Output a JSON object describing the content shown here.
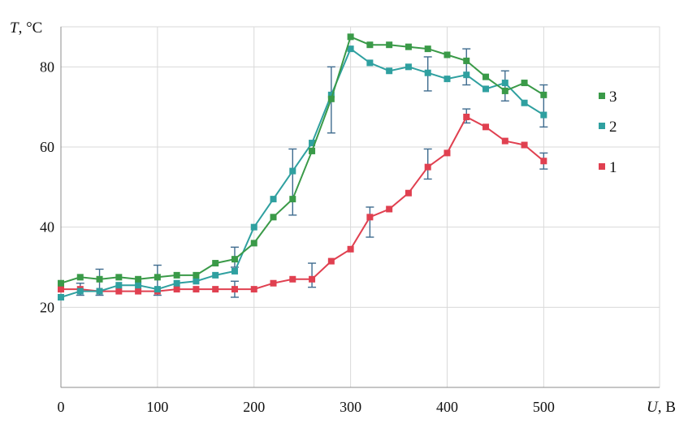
{
  "chart_data": {
    "type": "line",
    "title": "",
    "xlabel": {
      "symbol": "U",
      "unit": ", В"
    },
    "ylabel": {
      "symbol": "T",
      "unit": ", °C"
    },
    "xlim": [
      0,
      620
    ],
    "ylim": [
      0,
      90
    ],
    "x_ticks": [
      0,
      100,
      200,
      300,
      400,
      500
    ],
    "y_ticks": [
      20,
      40,
      60,
      80
    ],
    "grid": true,
    "legend_position": "right",
    "series": [
      {
        "name": "3",
        "color": "#3a9a48",
        "x": [
          0,
          20,
          40,
          60,
          80,
          100,
          120,
          140,
          160,
          180,
          200,
          220,
          240,
          260,
          280,
          300,
          320,
          340,
          360,
          380,
          400,
          420,
          440,
          460,
          480,
          500
        ],
        "y": [
          26.0,
          27.5,
          27.0,
          27.5,
          27.0,
          27.5,
          28.0,
          28.0,
          31.0,
          32.0,
          36.0,
          42.5,
          47.0,
          59.0,
          72.0,
          87.5,
          85.5,
          85.5,
          85.0,
          84.5,
          83.0,
          81.5,
          77.5,
          74.0,
          76.0,
          73.0
        ],
        "errors": [
          {
            "x": 180,
            "low": 30.0,
            "high": 35.0
          },
          {
            "x": 240,
            "low": 43.0,
            "high": 59.5
          },
          {
            "x": 280,
            "low": 63.5,
            "high": 80.0
          }
        ]
      },
      {
        "name": "2",
        "color": "#2fa0a0",
        "x": [
          0,
          20,
          40,
          60,
          80,
          100,
          120,
          140,
          160,
          180,
          200,
          220,
          240,
          260,
          280,
          300,
          320,
          340,
          360,
          380,
          400,
          420,
          440,
          460,
          480,
          500
        ],
        "y": [
          22.5,
          24.0,
          24.0,
          25.5,
          25.5,
          24.5,
          26.0,
          26.5,
          28.0,
          29.0,
          40.0,
          47.0,
          54.0,
          61.0,
          73.0,
          84.5,
          81.0,
          79.0,
          80.0,
          78.5,
          77.0,
          78.0,
          74.5,
          76.0,
          71.0,
          68.0
        ],
        "errors": [
          {
            "x": 40,
            "low": 23.0,
            "high": 29.5
          },
          {
            "x": 100,
            "low": 23.0,
            "high": 30.5
          },
          {
            "x": 380,
            "low": 74.0,
            "high": 82.5
          },
          {
            "x": 420,
            "low": 75.5,
            "high": 84.5
          },
          {
            "x": 460,
            "low": 71.5,
            "high": 79.0
          },
          {
            "x": 500,
            "low": 65.0,
            "high": 75.5
          }
        ]
      },
      {
        "name": "1",
        "color": "#e04050",
        "x": [
          0,
          20,
          40,
          60,
          80,
          100,
          120,
          140,
          160,
          180,
          200,
          220,
          240,
          260,
          280,
          300,
          320,
          340,
          360,
          380,
          400,
          420,
          440,
          460,
          480,
          500
        ],
        "y": [
          24.5,
          24.5,
          24.0,
          24.0,
          24.0,
          24.0,
          24.5,
          24.5,
          24.5,
          24.5,
          24.5,
          26.0,
          27.0,
          27.0,
          31.5,
          34.5,
          42.5,
          44.5,
          48.5,
          55.0,
          58.5,
          67.5,
          65.0,
          61.5,
          60.5,
          56.5
        ],
        "errors": [
          {
            "x": 20,
            "low": 23.0,
            "high": 26.0
          },
          {
            "x": 180,
            "low": 22.5,
            "high": 26.5
          },
          {
            "x": 260,
            "low": 25.0,
            "high": 31.0
          },
          {
            "x": 320,
            "low": 37.5,
            "high": 45.0
          },
          {
            "x": 380,
            "low": 52.0,
            "high": 59.5
          },
          {
            "x": 420,
            "low": 66.0,
            "high": 69.5
          },
          {
            "x": 500,
            "low": 54.5,
            "high": 58.5
          }
        ]
      }
    ],
    "error_bar_color": "#3f6c8f"
  }
}
